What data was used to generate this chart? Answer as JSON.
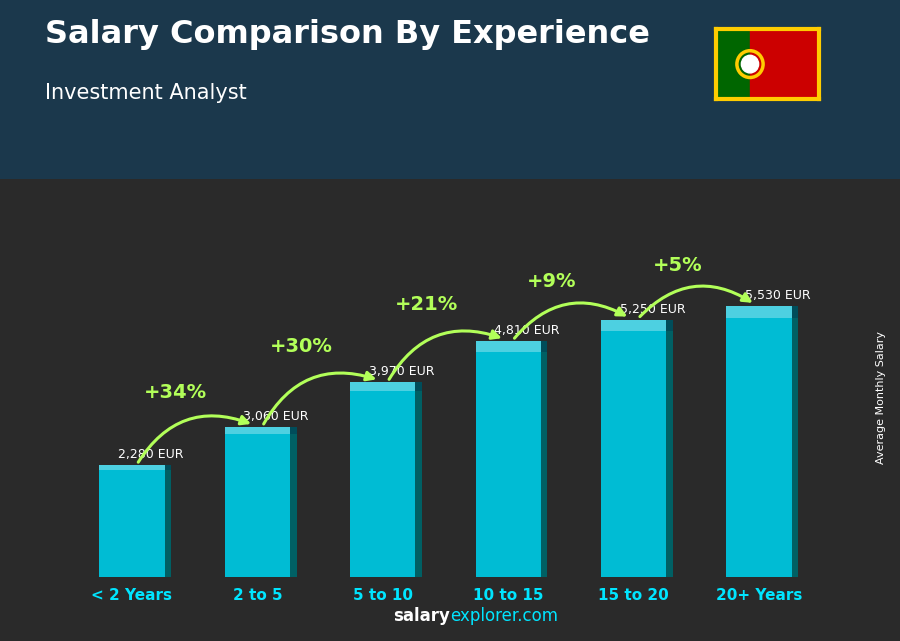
{
  "title_line1": "Salary Comparison By Experience",
  "title_line2": "Investment Analyst",
  "categories": [
    "< 2 Years",
    "2 to 5",
    "5 to 10",
    "10 to 15",
    "15 to 20",
    "20+ Years"
  ],
  "values": [
    2280,
    3060,
    3970,
    4810,
    5250,
    5530
  ],
  "value_labels": [
    "2,280 EUR",
    "3,060 EUR",
    "3,970 EUR",
    "4,810 EUR",
    "5,250 EUR",
    "5,530 EUR"
  ],
  "pct_labels": [
    "+34%",
    "+30%",
    "+21%",
    "+9%",
    "+5%"
  ],
  "bar_color_main": "#00bcd4",
  "bar_color_light": "#4dd0e1",
  "bar_color_dark": "#00838f",
  "bar_color_side": "#006064",
  "bg_color": "#263238",
  "header_bg": "#1a3a4a",
  "title_color": "#ffffff",
  "subtitle_color": "#ffffff",
  "label_color": "#00e5ff",
  "pct_color": "#b2ff59",
  "watermark_salary": "salary",
  "watermark_explorer": "explorer",
  "watermark_dot_com": ".com",
  "ylabel_text": "Average Monthly Salary",
  "ylim": [
    0,
    6800
  ],
  "bar_width": 0.52,
  "flag_green": "#006600",
  "flag_red": "#cc0000",
  "flag_yellow": "#ffcc00"
}
